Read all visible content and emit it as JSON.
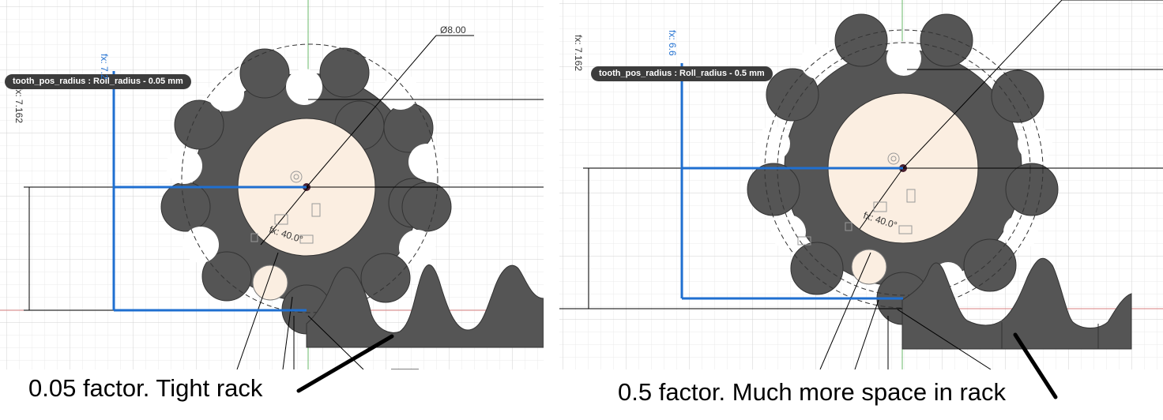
{
  "left_panel": {
    "tooltip": "tooth_pos_radius : Roll_radius - 0.05 mm",
    "diameter_label": "Ø8.00",
    "angle_label": "fx: 40.0°",
    "vertical_dim_black": "fx: 7.162",
    "vertical_dim_blue": "fx: 7.2",
    "caption": "0.05 factor. Tight rack"
  },
  "right_panel": {
    "tooltip": "tooth_pos_radius : Roll_radius - 0.5 mm",
    "angle_label": "fx: 40.0°",
    "vertical_dim_black": "fx: 7.162",
    "vertical_dim_blue": "fx: 6.6",
    "caption": "0.5 factor. Much more space in rack"
  },
  "colors": {
    "part_fill": "#555555",
    "part_stroke": "#333333",
    "hub_fill": "#fbeee1",
    "sketch_blue": "#1f6fd0",
    "grid_minor": "#ebebeb",
    "grid_major": "#d2d2d2"
  }
}
